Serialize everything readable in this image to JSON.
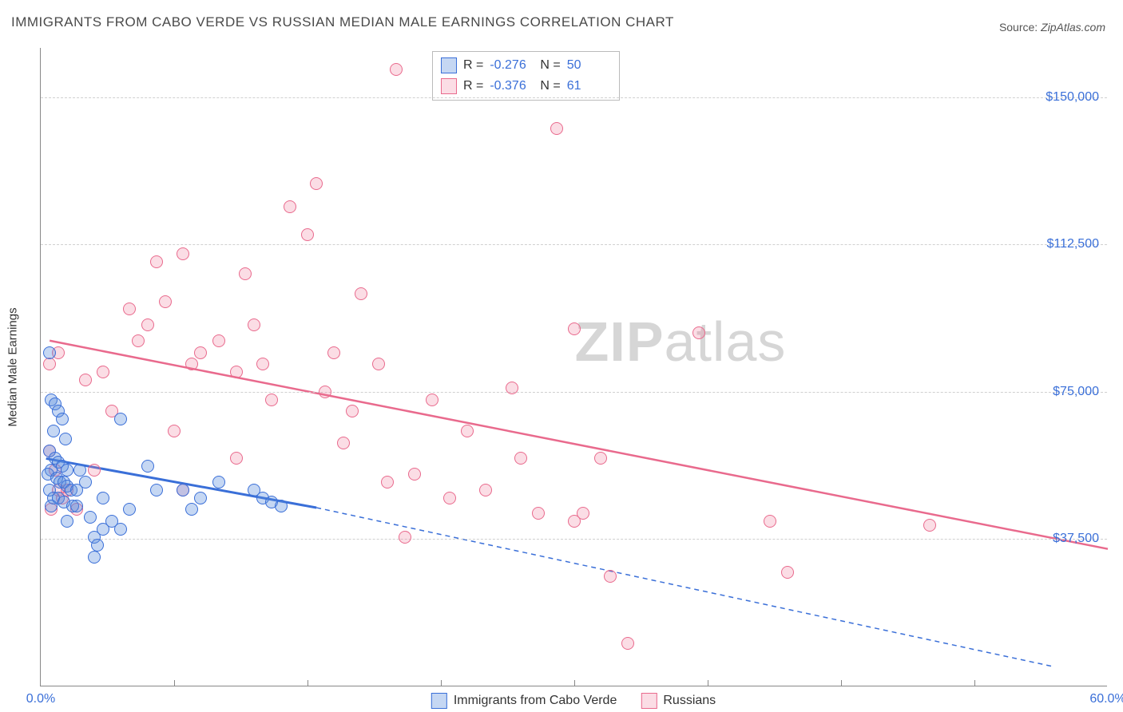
{
  "title": "IMMIGRANTS FROM CABO VERDE VS RUSSIAN MEDIAN MALE EARNINGS CORRELATION CHART",
  "source_label": "Source:",
  "source_value": "ZipAtlas.com",
  "watermark_a": "ZIP",
  "watermark_b": "atlas",
  "chart": {
    "type": "scatter",
    "ylabel": "Median Male Earnings",
    "background_color": "#ffffff",
    "grid_color": "#d0d0d0",
    "axis_color": "#888888",
    "tick_color": "#3a6fd8",
    "x": {
      "min": 0.0,
      "max": 60.0,
      "unit": "%",
      "ticks": [
        0.0,
        60.0
      ],
      "minor_ticks": [
        7.5,
        15,
        22.5,
        30,
        37.5,
        45,
        52.5
      ]
    },
    "y": {
      "min": 0,
      "max": 162500,
      "tick_step": 37500,
      "ticks": [
        37500,
        75000,
        112500,
        150000
      ],
      "tick_fmt": [
        "$37,500",
        "$75,000",
        "$112,500",
        "$150,000"
      ]
    },
    "series": [
      {
        "name": "Immigrants from Cabo Verde",
        "color_fill": "rgba(90,140,220,0.35)",
        "color_stroke": "#3a6fd8",
        "marker_size": 16,
        "R": "-0.276",
        "N": "50",
        "trend": {
          "x0": 0.3,
          "y0": 58000,
          "x1_solid": 15.5,
          "y1_solid": 45500,
          "x1_dash": 57,
          "y1_dash": 5000,
          "width_solid": 3,
          "width_dash": 1.5
        },
        "points": [
          [
            0.5,
            85000
          ],
          [
            0.6,
            73000
          ],
          [
            0.8,
            72000
          ],
          [
            1.0,
            70000
          ],
          [
            1.2,
            68000
          ],
          [
            0.7,
            65000
          ],
          [
            1.4,
            63000
          ],
          [
            0.5,
            60000
          ],
          [
            0.8,
            58000
          ],
          [
            1.0,
            57000
          ],
          [
            1.2,
            56000
          ],
          [
            0.6,
            55000
          ],
          [
            1.5,
            55000
          ],
          [
            0.4,
            54000
          ],
          [
            0.9,
            53000
          ],
          [
            1.1,
            52000
          ],
          [
            1.3,
            52000
          ],
          [
            1.5,
            51000
          ],
          [
            1.7,
            50000
          ],
          [
            0.5,
            50000
          ],
          [
            2.0,
            50000
          ],
          [
            2.2,
            55000
          ],
          [
            2.5,
            52000
          ],
          [
            0.7,
            48000
          ],
          [
            1.0,
            48000
          ],
          [
            1.3,
            47000
          ],
          [
            0.6,
            46000
          ],
          [
            1.8,
            46000
          ],
          [
            2.0,
            46000
          ],
          [
            3.5,
            48000
          ],
          [
            4.5,
            68000
          ],
          [
            5.0,
            45000
          ],
          [
            6.0,
            56000
          ],
          [
            6.5,
            50000
          ],
          [
            8.0,
            50000
          ],
          [
            8.5,
            45000
          ],
          [
            9.0,
            48000
          ],
          [
            10.0,
            52000
          ],
          [
            12.0,
            50000
          ],
          [
            12.5,
            48000
          ],
          [
            13.0,
            47000
          ],
          [
            13.5,
            46000
          ],
          [
            3.0,
            38000
          ],
          [
            3.2,
            36000
          ],
          [
            3.5,
            40000
          ],
          [
            4.0,
            42000
          ],
          [
            4.5,
            40000
          ],
          [
            2.8,
            43000
          ],
          [
            3.0,
            33000
          ],
          [
            1.5,
            42000
          ]
        ]
      },
      {
        "name": "Russians",
        "color_fill": "rgba(240,120,150,0.25)",
        "color_stroke": "#e96a8d",
        "marker_size": 16,
        "R": "-0.376",
        "N": "61",
        "trend": {
          "x0": 0.5,
          "y0": 88000,
          "x1_solid": 60,
          "y1_solid": 35000,
          "width_solid": 2.5
        },
        "points": [
          [
            0.5,
            60000
          ],
          [
            0.8,
            55000
          ],
          [
            1.0,
            50000
          ],
          [
            1.2,
            48000
          ],
          [
            0.6,
            45000
          ],
          [
            1.5,
            50000
          ],
          [
            2.0,
            45000
          ],
          [
            0.5,
            82000
          ],
          [
            1.0,
            85000
          ],
          [
            2.5,
            78000
          ],
          [
            3.0,
            55000
          ],
          [
            3.5,
            80000
          ],
          [
            4.0,
            70000
          ],
          [
            5.0,
            96000
          ],
          [
            5.5,
            88000
          ],
          [
            6.0,
            92000
          ],
          [
            6.5,
            108000
          ],
          [
            7.0,
            98000
          ],
          [
            7.5,
            65000
          ],
          [
            8.0,
            110000
          ],
          [
            8.5,
            82000
          ],
          [
            9.0,
            85000
          ],
          [
            10.0,
            88000
          ],
          [
            11.0,
            80000
          ],
          [
            11.5,
            105000
          ],
          [
            12.0,
            92000
          ],
          [
            12.5,
            82000
          ],
          [
            13.0,
            73000
          ],
          [
            14.0,
            122000
          ],
          [
            15.0,
            115000
          ],
          [
            15.5,
            128000
          ],
          [
            16.0,
            75000
          ],
          [
            16.5,
            85000
          ],
          [
            17.0,
            62000
          ],
          [
            17.5,
            70000
          ],
          [
            18.0,
            100000
          ],
          [
            19.0,
            82000
          ],
          [
            19.5,
            52000
          ],
          [
            20.0,
            157000
          ],
          [
            20.5,
            38000
          ],
          [
            21.0,
            54000
          ],
          [
            22.0,
            73000
          ],
          [
            23.0,
            48000
          ],
          [
            24.0,
            65000
          ],
          [
            25.0,
            50000
          ],
          [
            26.5,
            76000
          ],
          [
            27.0,
            58000
          ],
          [
            28.0,
            44000
          ],
          [
            29.0,
            142000
          ],
          [
            30.0,
            42000
          ],
          [
            30.5,
            44000
          ],
          [
            31.5,
            58000
          ],
          [
            30.0,
            91000
          ],
          [
            32.0,
            28000
          ],
          [
            33.0,
            11000
          ],
          [
            37.0,
            90000
          ],
          [
            41.0,
            42000
          ],
          [
            42.0,
            29000
          ],
          [
            50.0,
            41000
          ],
          [
            8.0,
            50000
          ],
          [
            11.0,
            58000
          ]
        ]
      }
    ]
  }
}
